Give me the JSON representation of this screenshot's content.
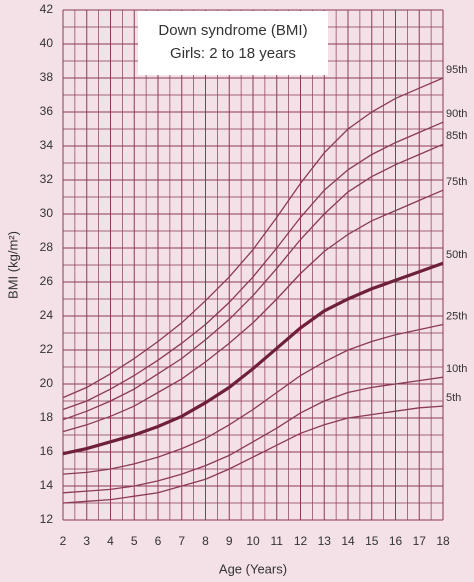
{
  "chart_data": {
    "type": "line",
    "title": "Down syndrome (BMI)",
    "subtitle": "Girls: 2 to 18 years",
    "x_label": "Age (Years)",
    "y_label": "BMI (kg/m²)",
    "x": [
      2,
      3,
      4,
      5,
      6,
      7,
      8,
      9,
      10,
      11,
      12,
      13,
      14,
      15,
      16,
      17,
      18
    ],
    "xlim": [
      2,
      18
    ],
    "xticks": [
      2,
      3,
      4,
      5,
      6,
      7,
      8,
      9,
      10,
      11,
      12,
      13,
      14,
      15,
      16,
      17,
      18
    ],
    "ylim": [
      12,
      42
    ],
    "yticks": [
      12,
      14,
      16,
      18,
      20,
      22,
      24,
      26,
      28,
      30,
      32,
      34,
      36,
      38,
      40,
      42
    ],
    "grid": true,
    "background": "#f4e0e7",
    "grid_color": "#8a3a55",
    "series": [
      {
        "name": "95th",
        "color": "#8a3a55",
        "width": 1.3,
        "values": [
          19.2,
          19.8,
          20.6,
          21.5,
          22.5,
          23.6,
          24.9,
          26.3,
          27.9,
          29.8,
          31.8,
          33.6,
          35.0,
          36.0,
          36.8,
          37.4,
          38.0
        ]
      },
      {
        "name": "90th",
        "color": "#8a3a55",
        "width": 1.3,
        "values": [
          18.5,
          19.0,
          19.7,
          20.5,
          21.4,
          22.4,
          23.5,
          24.8,
          26.3,
          28.0,
          29.8,
          31.4,
          32.6,
          33.5,
          34.2,
          34.8,
          35.4
        ]
      },
      {
        "name": "85th",
        "color": "#8a3a55",
        "width": 1.3,
        "values": [
          17.9,
          18.4,
          19.0,
          19.7,
          20.6,
          21.5,
          22.6,
          23.8,
          25.2,
          26.8,
          28.5,
          30.0,
          31.3,
          32.2,
          32.9,
          33.5,
          34.1
        ]
      },
      {
        "name": "75th",
        "color": "#8a3a55",
        "width": 1.3,
        "values": [
          17.2,
          17.6,
          18.1,
          18.7,
          19.5,
          20.3,
          21.3,
          22.4,
          23.6,
          25.0,
          26.5,
          27.8,
          28.8,
          29.6,
          30.2,
          30.8,
          31.4
        ]
      },
      {
        "name": "50th",
        "color": "#6e1f3c",
        "width": 3.2,
        "values": [
          15.9,
          16.2,
          16.6,
          17.0,
          17.5,
          18.1,
          18.9,
          19.8,
          20.9,
          22.1,
          23.3,
          24.3,
          25.0,
          25.6,
          26.1,
          26.6,
          27.1
        ]
      },
      {
        "name": "25th",
        "color": "#8a3a55",
        "width": 1.3,
        "values": [
          14.7,
          14.8,
          15.0,
          15.3,
          15.7,
          16.2,
          16.8,
          17.6,
          18.5,
          19.5,
          20.5,
          21.3,
          22.0,
          22.5,
          22.9,
          23.2,
          23.5
        ]
      },
      {
        "name": "10th",
        "color": "#8a3a55",
        "width": 1.3,
        "values": [
          13.6,
          13.7,
          13.8,
          14.0,
          14.3,
          14.7,
          15.2,
          15.8,
          16.6,
          17.4,
          18.3,
          19.0,
          19.5,
          19.8,
          20.0,
          20.2,
          20.4
        ]
      },
      {
        "name": "5th",
        "color": "#8a3a55",
        "width": 1.3,
        "values": [
          13.0,
          13.1,
          13.2,
          13.4,
          13.6,
          14.0,
          14.4,
          15.0,
          15.7,
          16.4,
          17.1,
          17.6,
          18.0,
          18.2,
          18.4,
          18.6,
          18.7
        ]
      }
    ]
  }
}
